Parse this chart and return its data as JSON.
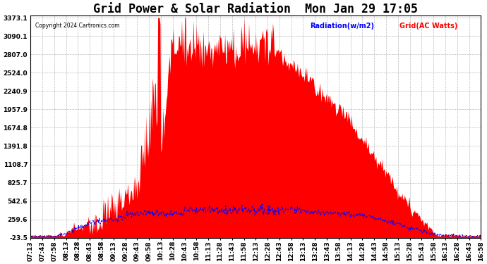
{
  "title": "Grid Power & Solar Radiation  Mon Jan 29 17:05",
  "copyright": "Copyright 2024 Cartronics.com",
  "legend_radiation": "Radiation(w/m2)",
  "legend_grid": "Grid(AC Watts)",
  "yticks": [
    -23.5,
    259.6,
    542.6,
    825.7,
    1108.7,
    1391.8,
    1674.8,
    1957.9,
    2240.9,
    2524.0,
    2807.0,
    3090.1,
    3373.1
  ],
  "ymin": -23.5,
  "ymax": 3373.1,
  "xtick_labels": [
    "07:13",
    "07:43",
    "07:58",
    "08:13",
    "08:28",
    "08:43",
    "08:58",
    "09:13",
    "09:28",
    "09:43",
    "09:58",
    "10:13",
    "10:28",
    "10:43",
    "10:58",
    "11:13",
    "11:28",
    "11:43",
    "11:58",
    "12:13",
    "12:28",
    "12:43",
    "12:58",
    "13:13",
    "13:28",
    "13:43",
    "13:58",
    "14:13",
    "14:28",
    "14:43",
    "14:58",
    "15:13",
    "15:28",
    "15:43",
    "15:58",
    "16:13",
    "16:28",
    "16:43",
    "16:58"
  ],
  "background_color": "#ffffff",
  "grid_color": "#bbbbbb",
  "fill_color": "#ff0000",
  "line_color_radiation": "#0000ff",
  "title_fontsize": 12,
  "tick_fontsize": 6.5,
  "label_fontsize": 8
}
